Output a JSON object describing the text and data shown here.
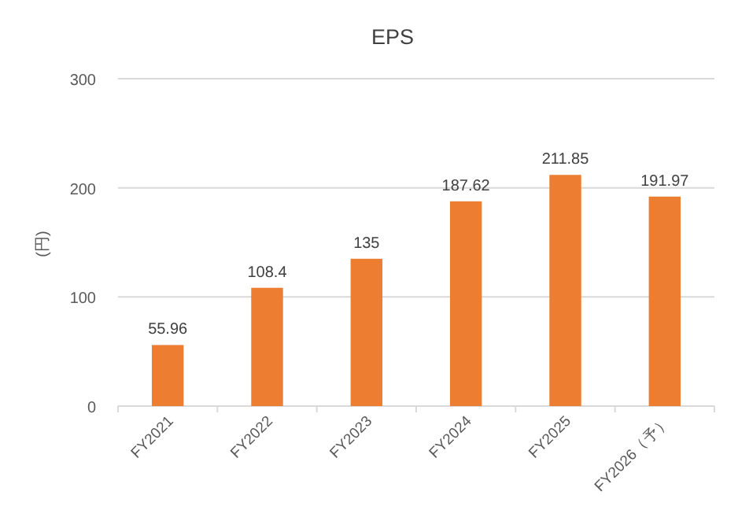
{
  "chart_data": {
    "type": "bar",
    "title": "EPS",
    "ylabel": "(円)",
    "categories": [
      "FY2021",
      "FY2022",
      "FY2023",
      "FY2024",
      "FY2025",
      "FY2026（予）"
    ],
    "values": [
      55.96,
      108.4,
      135,
      187.62,
      211.85,
      191.97
    ],
    "color": "#ed7d31",
    "ylim": [
      0,
      300
    ],
    "yticks": [
      0,
      100,
      200,
      300
    ],
    "grid": "y",
    "data_labels": true
  }
}
